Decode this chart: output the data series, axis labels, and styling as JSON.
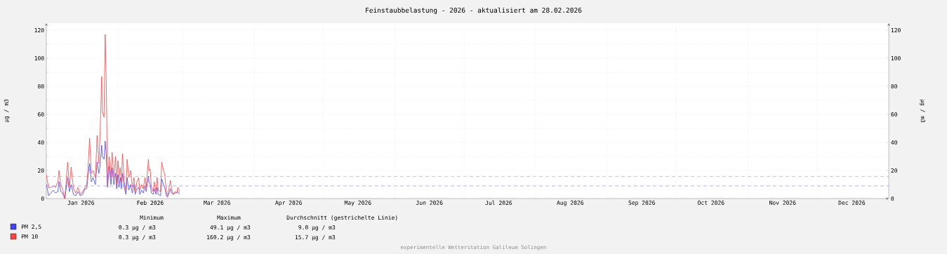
{
  "chart_data": {
    "type": "line",
    "title": "Feinstaubbelastung - 2026 - aktualisiert am 28.02.2026",
    "ylabel": "µg / m3",
    "y2label": "µg / m3",
    "x": [
      "2026-01-01T00:00",
      "2026-01-02T00:00",
      "2026-01-03T00:00",
      "2026-01-04T00:00",
      "2026-01-05T00:00",
      "2026-01-06T00:00",
      "2026-01-06T12:00",
      "2026-01-07T06:00",
      "2026-01-08T00:00",
      "2026-01-09T00:00",
      "2026-01-10T06:00",
      "2026-01-11T00:00",
      "2026-01-11T18:00",
      "2026-01-12T18:00",
      "2026-01-13T18:00",
      "2026-01-14T18:00",
      "2026-01-15T18:00",
      "2026-01-16T18:00",
      "2026-01-17T18:00",
      "2026-01-18T12:00",
      "2026-01-19T00:00",
      "2026-01-19T18:00",
      "2026-01-20T12:00",
      "2026-01-21T06:00",
      "2026-01-22T06:00",
      "2026-01-23T00:00",
      "2026-01-23T18:00",
      "2026-01-24T06:00",
      "2026-01-25T00:00",
      "2026-01-25T06:00",
      "2026-01-26T00:00",
      "2026-01-26T12:00",
      "2026-01-27T00:00",
      "2026-01-27T12:00",
      "2026-01-28T06:00",
      "2026-01-29T00:00",
      "2026-01-29T12:00",
      "2026-01-30T06:00",
      "2026-01-31T00:00",
      "2026-01-31T12:00",
      "2026-02-01T00:00",
      "2026-02-01T12:00",
      "2026-02-02T00:00",
      "2026-02-02T12:00",
      "2026-02-03T00:00",
      "2026-02-03T18:00",
      "2026-02-04T12:00",
      "2026-02-05T00:00",
      "2026-02-05T18:00",
      "2026-02-06T12:00",
      "2026-02-07T06:00",
      "2026-02-08T00:00",
      "2026-02-08T12:00",
      "2026-02-09T06:00",
      "2026-02-10T00:00",
      "2026-02-10T12:00",
      "2026-02-11T06:00",
      "2026-02-12T00:00",
      "2026-02-12T18:00",
      "2026-02-13T06:00",
      "2026-02-14T06:00",
      "2026-02-14T12:00",
      "2026-02-15T00:00",
      "2026-02-15T12:00",
      "2026-02-16T06:00",
      "2026-02-16T18:00",
      "2026-02-17T12:00",
      "2026-02-18T00:00",
      "2026-02-18T12:00",
      "2026-02-19T12:00",
      "2026-02-20T00:00",
      "2026-02-20T18:00",
      "2026-02-21T06:00",
      "2026-02-22T00:00",
      "2026-02-22T12:00",
      "2026-02-23T00:00",
      "2026-02-23T18:00",
      "2026-02-24T06:00",
      "2026-02-25T00:00",
      "2026-02-25T18:00",
      "2026-02-26T12:00",
      "2026-02-27T00:00",
      "2026-02-27T18:00"
    ],
    "series": [
      {
        "name": "PM 2,5",
        "color": "#4040ff",
        "values": [
          10,
          2,
          4,
          6,
          4,
          5,
          12,
          5,
          4,
          0,
          15,
          5,
          10,
          3,
          2,
          5,
          2,
          3,
          7,
          7,
          15,
          25,
          12,
          15,
          10,
          26,
          18,
          23,
          38,
          30,
          28,
          41,
          30,
          8,
          23,
          10,
          22,
          10,
          18,
          7,
          17,
          8,
          15,
          7,
          18,
          8,
          3,
          15,
          6,
          10,
          4,
          10,
          3,
          7,
          8,
          3,
          6,
          4,
          9,
          5,
          16,
          12,
          10,
          4,
          3,
          7,
          3,
          8,
          3,
          2,
          14,
          10,
          8,
          2,
          1,
          3,
          7,
          4,
          3,
          4,
          4,
          5,
          3
        ]
      },
      {
        "name": "PM 10",
        "color": "#ff4040",
        "values": [
          17,
          7.5,
          8,
          9,
          8,
          12,
          20,
          10,
          7,
          0,
          26,
          8,
          22.5,
          7,
          4,
          8,
          3,
          5,
          8,
          10,
          20,
          43,
          18,
          20,
          15,
          45,
          25,
          44,
          87,
          62,
          58,
          117,
          80,
          10,
          30,
          15,
          33,
          15,
          30,
          10,
          27,
          15,
          22,
          12,
          32,
          12,
          5,
          28,
          15,
          20,
          8,
          15,
          5,
          12,
          15,
          6,
          10,
          7,
          15,
          8,
          28,
          20,
          21,
          8,
          5,
          12,
          5,
          15,
          6,
          5,
          26,
          20,
          18,
          5,
          2,
          6,
          13,
          7,
          3,
          5,
          4,
          8,
          5
        ]
      }
    ],
    "xlim": [
      "2026-01-01",
      "2027-01-01"
    ],
    "xticks": [
      {
        "value": "2026-01-01",
        "label": null
      },
      {
        "value": "2026-01-16",
        "label": "Jan 2026"
      },
      {
        "value": "2026-02-01",
        "label": null
      },
      {
        "value": "2026-02-15",
        "label": "Feb 2026"
      },
      {
        "value": "2026-03-01",
        "label": null
      },
      {
        "value": "2026-03-16",
        "label": "Mar 2026"
      },
      {
        "value": "2026-04-01",
        "label": null
      },
      {
        "value": "2026-04-16",
        "label": "Apr 2026"
      },
      {
        "value": "2026-05-01",
        "label": null
      },
      {
        "value": "2026-05-16",
        "label": "May 2026"
      },
      {
        "value": "2026-06-01",
        "label": null
      },
      {
        "value": "2026-06-16",
        "label": "Jun 2026"
      },
      {
        "value": "2026-07-01",
        "label": null
      },
      {
        "value": "2026-07-16",
        "label": "Jul 2026"
      },
      {
        "value": "2026-08-01",
        "label": null
      },
      {
        "value": "2026-08-16",
        "label": "Aug 2026"
      },
      {
        "value": "2026-09-01",
        "label": null
      },
      {
        "value": "2026-09-16",
        "label": "Sep 2026"
      },
      {
        "value": "2026-10-01",
        "label": null
      },
      {
        "value": "2026-10-16",
        "label": "Oct 2026"
      },
      {
        "value": "2026-11-01",
        "label": null
      },
      {
        "value": "2026-11-16",
        "label": "Nov 2026"
      },
      {
        "value": "2026-12-01",
        "label": null
      },
      {
        "value": "2026-12-16",
        "label": "Dec 2026"
      }
    ],
    "ylim": [
      0,
      125
    ],
    "yticks": [
      0,
      {
        "value": 10,
        "label": null
      },
      20,
      {
        "value": 30,
        "label": null
      },
      40,
      {
        "value": 50,
        "label": null
      },
      60,
      {
        "value": 70,
        "label": null
      },
      80,
      {
        "value": 90,
        "label": null
      },
      100,
      {
        "value": 110,
        "label": null
      },
      120
    ],
    "y2lim": [
      0,
      125
    ],
    "y2ticks": [
      0,
      20,
      40,
      60,
      80,
      100,
      120
    ],
    "grid": true,
    "legend": "bottom",
    "line_style": "solid",
    "ref_lines": [
      {
        "axis": "y",
        "value": 9.0,
        "color": "#4040ff",
        "line_style": "dashed"
      },
      {
        "axis": "y",
        "value": 15.7,
        "color": "#ff4040",
        "line_style": "dashed"
      }
    ],
    "annotations": [
      "Minimum",
      "Maximum",
      "Durchschnitt (gestrichelte Linie)",
      "0.3 µg / m3",
      "49.1 µg / m3",
      "9.0 µg / m3",
      "0.3 µg / m3",
      "160.2 µg / m3",
      "15.7 µg / m3",
      "experimentelle Wetterstation Galileum Solingen"
    ]
  }
}
